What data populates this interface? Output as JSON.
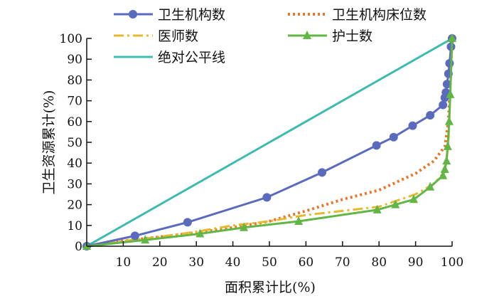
{
  "chart_data": {
    "type": "line",
    "title": "",
    "xlabel": "面积累计比(%)",
    "ylabel": "卫生资源累计(%)",
    "xlim": [
      0,
      100
    ],
    "ylim": [
      0,
      100
    ],
    "xticks": [
      "10",
      "20",
      "30",
      "40",
      "50",
      "60",
      "70",
      "80",
      "90",
      "100"
    ],
    "yticks": [
      "0",
      "10",
      "20",
      "30",
      "40",
      "50",
      "60",
      "70",
      "80",
      "90",
      "100"
    ],
    "grid": false,
    "legend_position": "top",
    "series": [
      {
        "name": "卫生机构数",
        "color": "#5A6BBF",
        "style": "solid-circle",
        "x": [
          0,
          13.2,
          27.6,
          49.3,
          64.4,
          79.3,
          84,
          89.2,
          94,
          97.5,
          98,
          98.3,
          98.6,
          99,
          99.3,
          99.7,
          100
        ],
        "y": [
          0,
          5,
          11.5,
          23.5,
          35.5,
          48.5,
          52.5,
          58,
          63,
          68,
          71.5,
          74,
          78,
          83,
          88,
          96,
          100
        ]
      },
      {
        "name": "卫生机构床位数",
        "color": "#E8772E",
        "style": "dotted",
        "x": [
          0,
          10,
          20,
          30,
          40,
          50,
          60,
          70,
          80,
          90,
          95,
          98,
          99,
          100
        ],
        "y": [
          0,
          2.5,
          4.5,
          6.5,
          9,
          12,
          17,
          22.5,
          27,
          35,
          41,
          48,
          60,
          100
        ]
      },
      {
        "name": "医师数",
        "color": "#E5B92C",
        "style": "dashdot",
        "x": [
          0,
          10,
          20,
          30,
          40,
          50,
          60,
          70,
          80,
          90,
          95,
          98,
          99,
          100
        ],
        "y": [
          0,
          2.5,
          4.5,
          7,
          10,
          12,
          15,
          17,
          19,
          25,
          30,
          36,
          50,
          100
        ]
      },
      {
        "name": "护士数",
        "color": "#62B645",
        "style": "solid-triangle",
        "x": [
          0,
          16,
          31,
          43,
          58,
          79.5,
          84.5,
          89.5,
          94,
          97.5,
          98,
          98.5,
          98.8,
          99.2,
          99.5,
          100
        ],
        "y": [
          0,
          3,
          6,
          9,
          12,
          17.5,
          20,
          22.5,
          28.5,
          34,
          37,
          41,
          48,
          60,
          73,
          100
        ]
      },
      {
        "name": "绝对公平线",
        "color": "#3EBBAF",
        "style": "solid",
        "x": [
          0,
          100
        ],
        "y": [
          0,
          100
        ]
      }
    ]
  }
}
